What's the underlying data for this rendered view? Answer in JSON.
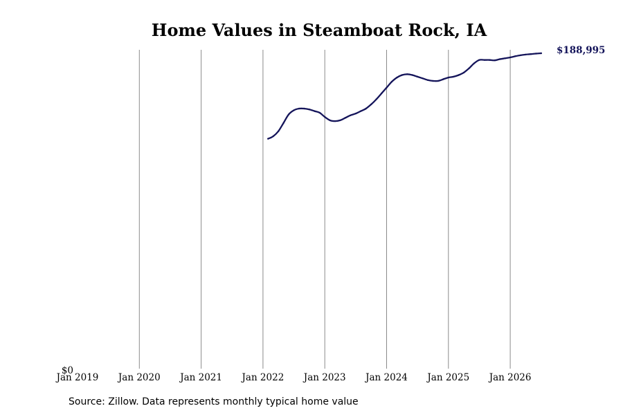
{
  "chart_data": {
    "type": "line",
    "title": "Home Values in Steamboat Rock, IA",
    "xlabel": "",
    "ylabel": "",
    "x_tick_labels": [
      "Jan 2019",
      "Jan 2020",
      "Jan 2021",
      "Jan 2022",
      "Jan 2023",
      "Jan 2024",
      "Jan 2025",
      "Jan 2026"
    ],
    "y_tick_labels": [
      "$0"
    ],
    "ylim": [
      0,
      188995
    ],
    "grid": "vertical",
    "line_color": "#14145a",
    "end_label": "$188,995",
    "series": [
      {
        "values": [
          {
            "x": "2022-02",
            "y": 138000
          },
          {
            "x": "2022-03",
            "y": 139500
          },
          {
            "x": "2022-04",
            "y": 142500
          },
          {
            "x": "2022-05",
            "y": 147500
          },
          {
            "x": "2022-06",
            "y": 152500
          },
          {
            "x": "2022-07",
            "y": 155000
          },
          {
            "x": "2022-08",
            "y": 156000
          },
          {
            "x": "2022-09",
            "y": 156000
          },
          {
            "x": "2022-10",
            "y": 155500
          },
          {
            "x": "2022-11",
            "y": 154500
          },
          {
            "x": "2022-12",
            "y": 153500
          },
          {
            "x": "2023-01",
            "y": 151000
          },
          {
            "x": "2023-02",
            "y": 149000
          },
          {
            "x": "2023-03",
            "y": 148500
          },
          {
            "x": "2023-04",
            "y": 149000
          },
          {
            "x": "2023-05",
            "y": 150500
          },
          {
            "x": "2023-06",
            "y": 152000
          },
          {
            "x": "2023-07",
            "y": 153000
          },
          {
            "x": "2023-08",
            "y": 154500
          },
          {
            "x": "2023-09",
            "y": 156000
          },
          {
            "x": "2023-10",
            "y": 158500
          },
          {
            "x": "2023-11",
            "y": 161500
          },
          {
            "x": "2023-12",
            "y": 165000
          },
          {
            "x": "2024-01",
            "y": 168500
          },
          {
            "x": "2024-02",
            "y": 172000
          },
          {
            "x": "2024-03",
            "y": 174500
          },
          {
            "x": "2024-04",
            "y": 176000
          },
          {
            "x": "2024-05",
            "y": 176500
          },
          {
            "x": "2024-06",
            "y": 176000
          },
          {
            "x": "2024-07",
            "y": 175000
          },
          {
            "x": "2024-08",
            "y": 174000
          },
          {
            "x": "2024-09",
            "y": 173000
          },
          {
            "x": "2024-10",
            "y": 172500
          },
          {
            "x": "2024-11",
            "y": 172500
          },
          {
            "x": "2024-12",
            "y": 173500
          },
          {
            "x": "2025-01",
            "y": 174500
          },
          {
            "x": "2025-02",
            "y": 175000
          },
          {
            "x": "2025-03",
            "y": 176000
          },
          {
            "x": "2025-04",
            "y": 177500
          },
          {
            "x": "2025-05",
            "y": 180000
          },
          {
            "x": "2025-06",
            "y": 183000
          },
          {
            "x": "2025-07",
            "y": 185000
          },
          {
            "x": "2025-08",
            "y": 185000
          },
          {
            "x": "2025-09",
            "y": 185000
          },
          {
            "x": "2025-10",
            "y": 184800
          },
          {
            "x": "2025-11",
            "y": 185500
          },
          {
            "x": "2025-12",
            "y": 186000
          },
          {
            "x": "2026-01",
            "y": 186500
          },
          {
            "x": "2026-02",
            "y": 187200
          },
          {
            "x": "2026-03",
            "y": 187800
          },
          {
            "x": "2026-04",
            "y": 188200
          },
          {
            "x": "2026-05",
            "y": 188500
          },
          {
            "x": "2026-06",
            "y": 188800
          },
          {
            "x": "2026-07",
            "y": 188995
          }
        ]
      }
    ]
  },
  "footer": {
    "source": "Source: Zillow. Data represents monthly typical home value"
  }
}
